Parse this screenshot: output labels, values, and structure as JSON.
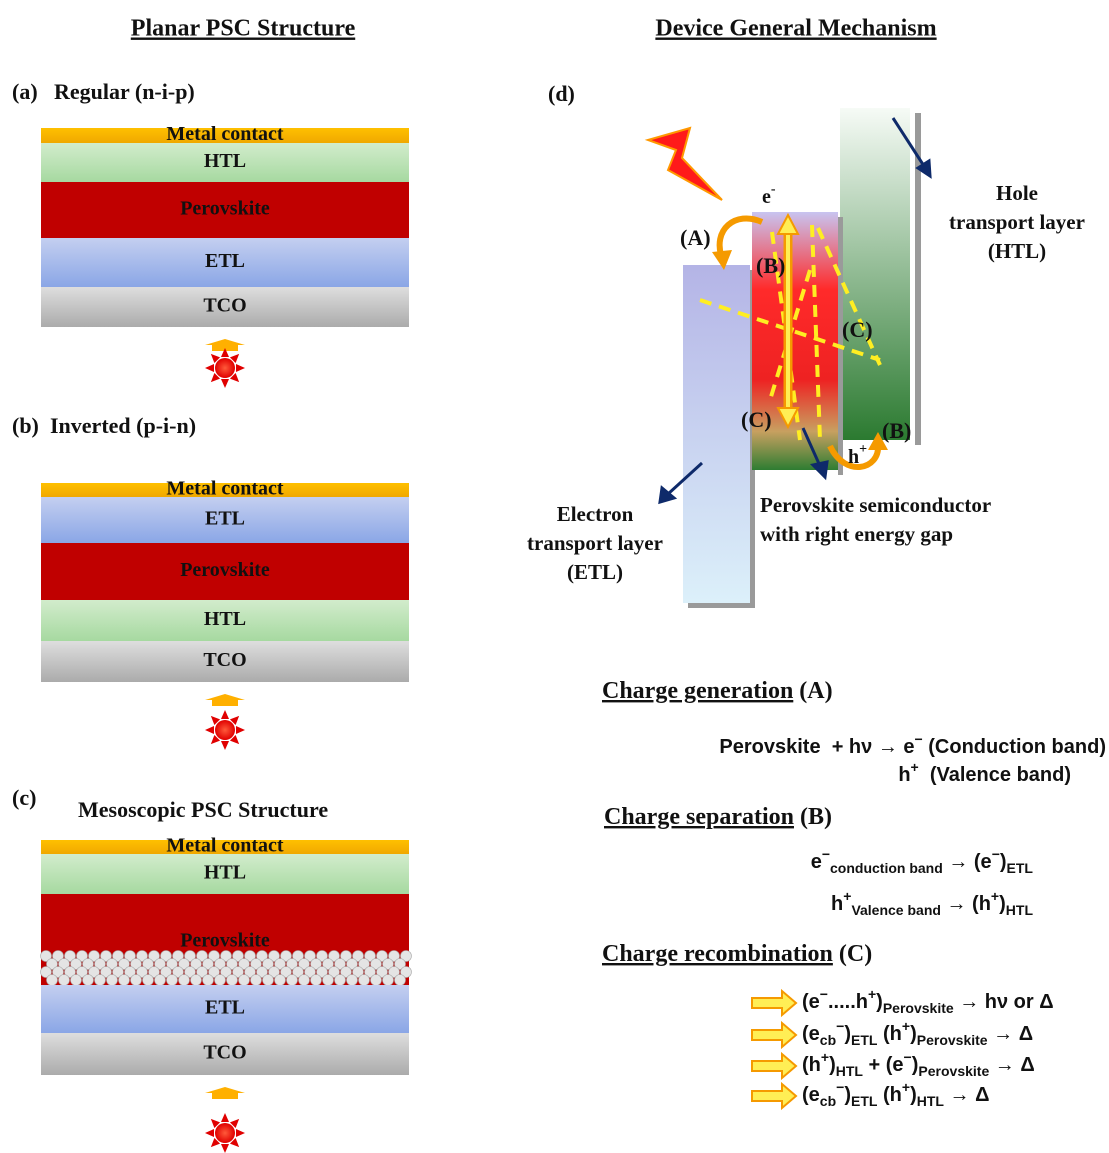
{
  "left": {
    "title": "Planar PSC Structure",
    "panels": [
      {
        "label": "(a)",
        "title": "Regular (n-i-p)",
        "layers": [
          "Metal contact",
          "HTL",
          "Perovskite",
          "ETL",
          "TCO"
        ]
      },
      {
        "label": "(b)",
        "title": "Inverted (p-i-n)",
        "layers": [
          "Metal contact",
          "ETL",
          "Perovskite",
          "HTL",
          "TCO"
        ]
      },
      {
        "label": "(c)",
        "title": "Mesoscopic PSC Structure",
        "layers": [
          "Metal contact",
          "HTL",
          "Perovskite",
          "ETL",
          "TCO"
        ]
      }
    ]
  },
  "right": {
    "title": "Device General Mechanism",
    "label": "(d)",
    "diagram": {
      "electron": [
        {
          "text": "e"
        },
        {
          "sup": "-"
        }
      ],
      "hole": [
        {
          "text": "h"
        },
        {
          "sup": "+"
        }
      ],
      "marks": [
        "(A)",
        "(B)",
        "(B)",
        "(C)",
        "(C)"
      ],
      "htl_label": [
        "Hole",
        "transport layer",
        "(HTL)"
      ],
      "etl_label": [
        "Electron",
        "transport layer",
        "(ETL)"
      ],
      "perovskite_label": [
        "Perovskite semiconductor",
        "with right energy gap"
      ]
    },
    "sections": [
      {
        "title": "Charge generation",
        "tag": "(A)",
        "equations": [
          [
            {
              "text": "Perovskite  + hν → e"
            },
            {
              "sup": "−"
            },
            {
              "text": " (Conduction band)"
            }
          ],
          [
            {
              "text": "h"
            },
            {
              "sup": "+"
            },
            {
              "text": "  (Valence band)"
            }
          ]
        ]
      },
      {
        "title": "Charge separation",
        "tag": "(B)",
        "equations": [
          [
            {
              "text": "e"
            },
            {
              "sup": "−"
            },
            {
              "sub": "conduction band"
            },
            {
              "text": " → (e"
            },
            {
              "sup": "−"
            },
            {
              "text": ")"
            },
            {
              "sub": "ETL"
            }
          ],
          [
            {
              "text": "h"
            },
            {
              "sup": "+"
            },
            {
              "sub": "Valence band"
            },
            {
              "text": " → (h"
            },
            {
              "sup": "+"
            },
            {
              "text": ")"
            },
            {
              "sub": "HTL"
            }
          ]
        ]
      },
      {
        "title": "Charge recombination",
        "tag": "(C)",
        "equations": [
          [
            {
              "text": "(e"
            },
            {
              "sup": "−"
            },
            {
              "text": ".....h"
            },
            {
              "sup": "+"
            },
            {
              "text": ")"
            },
            {
              "sub": "Perovskite"
            },
            {
              "text": " → hν or Δ"
            }
          ],
          [
            {
              "text": "(e"
            },
            {
              "sub": "cb"
            },
            {
              "sup": "−"
            },
            {
              "text": ")"
            },
            {
              "sub": "ETL"
            },
            {
              "text": " (h"
            },
            {
              "sup": "+"
            },
            {
              "text": ")"
            },
            {
              "sub": "Perovskite"
            },
            {
              "text": " → Δ"
            }
          ],
          [
            {
              "text": "(h"
            },
            {
              "sup": "+"
            },
            {
              "text": ")"
            },
            {
              "sub": "HTL"
            },
            {
              "text": " + (e"
            },
            {
              "sup": "−"
            },
            {
              "text": ")"
            },
            {
              "sub": "Perovskite"
            },
            {
              "text": " → Δ"
            }
          ],
          [
            {
              "text": "(e"
            },
            {
              "sub": "cb"
            },
            {
              "sup": "−"
            },
            {
              "text": ")"
            },
            {
              "sub": "ETL"
            },
            {
              "text": " (h"
            },
            {
              "sup": "+"
            },
            {
              "text": ")"
            },
            {
              "sub": "HTL"
            },
            {
              "text": " → Δ"
            }
          ]
        ]
      }
    ]
  }
}
